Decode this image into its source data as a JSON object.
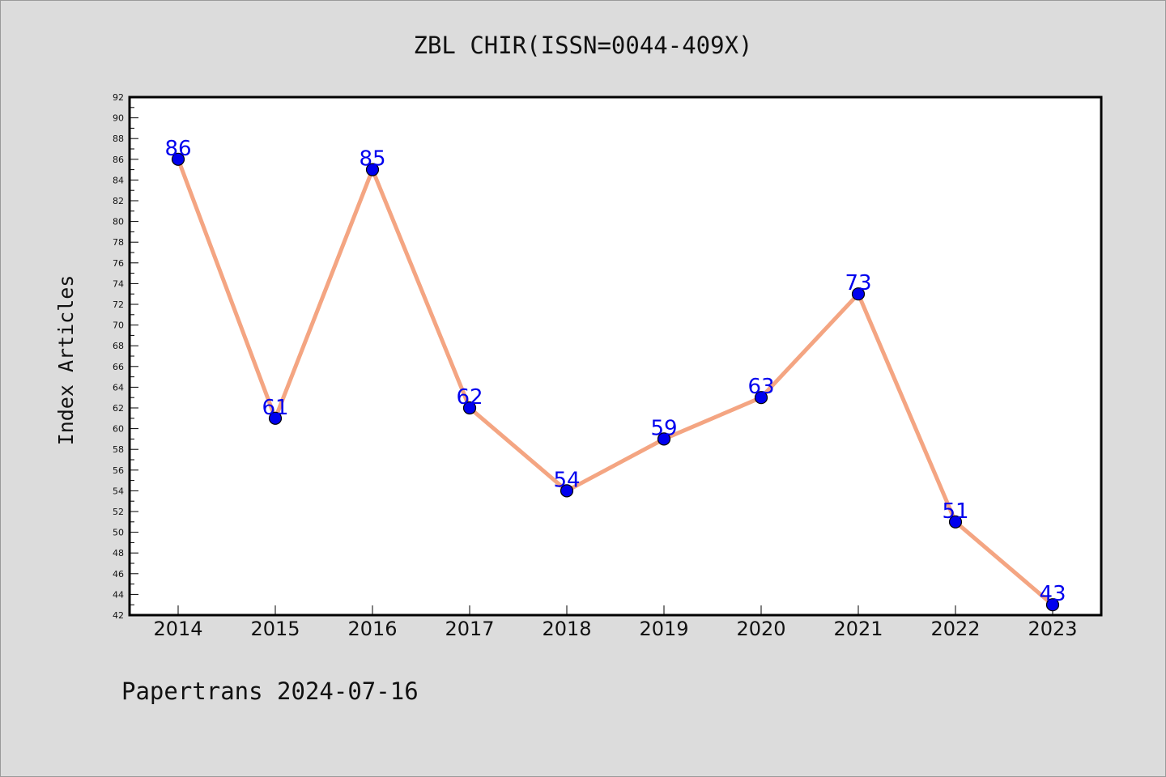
{
  "chart_data": {
    "type": "line",
    "title": "ZBL CHIR(ISSN=0044-409X)",
    "ylabel": "Index Articles",
    "xlabel": "",
    "footer": "Papertrans 2024-07-16",
    "categories": [
      "2014",
      "2015",
      "2016",
      "2017",
      "2018",
      "2019",
      "2020",
      "2021",
      "2022",
      "2023"
    ],
    "series": [
      {
        "values": [
          86,
          61,
          85,
          62,
          54,
          59,
          63,
          73,
          51,
          43
        ],
        "line_color": "#f4a582",
        "marker_color": "#0000ee",
        "label_color": "#0000ee"
      }
    ],
    "ylim": [
      42,
      92
    ],
    "ytick_step": 2,
    "grid": false,
    "legend": "none",
    "background_color": "#dcdcdc",
    "plot_background_color": "#ffffff"
  }
}
